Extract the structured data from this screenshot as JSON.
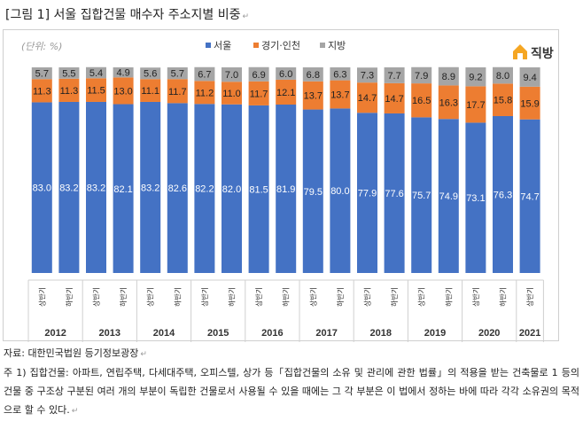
{
  "document": {
    "title": "[그림 1] 서울 집합건물 매수자 주소지별 비중",
    "source": "자료: 대한민국법원 등기정보광장",
    "footnote": "주 1) 집합건물: 아파트, 연립주택, 다세대주택, 오피스텔, 상가 등「집합건물의 소유 및 관리에 관한 법률」의 적용을 받는 건축물로 1 등의 건물 중 구조상 구분된 여러 개의 부분이 독립한 건물로서 사용될 수 있을 때에는 그 각 부분은 이 법에서 정하는 바에 따라 각각 소유권의 목적으로 할 수 있다.",
    "pilcrow": "↵"
  },
  "brand": {
    "name": "직방",
    "icon": "house-logo-icon",
    "color": "#f5a623"
  },
  "chart_data": {
    "type": "bar",
    "stacked": true,
    "unit_label": "(단위: %)",
    "ylim": [
      0,
      100
    ],
    "grid": false,
    "legend_position": "top-center",
    "categories": [
      {
        "year": "2012",
        "half": "상반기"
      },
      {
        "year": "2012",
        "half": "하반기"
      },
      {
        "year": "2013",
        "half": "상반기"
      },
      {
        "year": "2013",
        "half": "하반기"
      },
      {
        "year": "2014",
        "half": "상반기"
      },
      {
        "year": "2014",
        "half": "하반기"
      },
      {
        "year": "2015",
        "half": "상반기"
      },
      {
        "year": "2015",
        "half": "하반기"
      },
      {
        "year": "2016",
        "half": "상반기"
      },
      {
        "year": "2016",
        "half": "하반기"
      },
      {
        "year": "2017",
        "half": "상반기"
      },
      {
        "year": "2017",
        "half": "하반기"
      },
      {
        "year": "2018",
        "half": "상반기"
      },
      {
        "year": "2018",
        "half": "하반기"
      },
      {
        "year": "2019",
        "half": "상반기"
      },
      {
        "year": "2019",
        "half": "하반기"
      },
      {
        "year": "2020",
        "half": "상반기"
      },
      {
        "year": "2020",
        "half": "하반기"
      },
      {
        "year": "2021",
        "half": "상반기"
      }
    ],
    "years": [
      "2012",
      "2013",
      "2014",
      "2015",
      "2016",
      "2017",
      "2018",
      "2019",
      "2020",
      "2021"
    ],
    "series": [
      {
        "name": "서울",
        "color": "#4472c4",
        "values": [
          83.0,
          83.2,
          83.2,
          82.1,
          83.2,
          82.6,
          82.2,
          82.0,
          81.5,
          81.9,
          79.5,
          80.0,
          77.9,
          77.6,
          75.7,
          74.9,
          73.1,
          76.3,
          74.7
        ],
        "labels": [
          "83.0",
          "83.2",
          "83.2",
          "82.1",
          "83.2",
          "82.6",
          "82.2",
          "82.0",
          "81.5",
          "81.9",
          "79.5",
          "80.0",
          "77.9",
          "77.6",
          "75.7",
          "74.9",
          "73.1",
          "76.3",
          "74.7"
        ]
      },
      {
        "name": "경기·인천",
        "color": "#ed7d31",
        "values": [
          11.3,
          11.3,
          11.5,
          13.0,
          11.1,
          11.7,
          11.2,
          11.0,
          11.7,
          12.1,
          13.7,
          13.7,
          14.7,
          14.7,
          16.5,
          16.3,
          17.7,
          15.8,
          15.9
        ],
        "labels": [
          "11.3",
          "11.3",
          "11.5",
          "13.0",
          "11.1",
          "11.7",
          "11.2",
          "11.0",
          "11.7",
          "12.1",
          "13.7",
          "13.7",
          "14.7",
          "14.7",
          "16.5",
          "16.3",
          "17.7",
          "15.8",
          "15.9"
        ]
      },
      {
        "name": "지방",
        "color": "#a5a5a5",
        "values": [
          5.7,
          5.5,
          5.4,
          4.9,
          5.6,
          5.7,
          6.7,
          7.0,
          6.9,
          6.0,
          6.8,
          6.3,
          7.3,
          7.7,
          7.9,
          8.9,
          9.2,
          8.0,
          9.4
        ],
        "labels": [
          "5.7",
          "5.5",
          "5.4",
          "4.9",
          "5.6",
          "5.7",
          "6.7",
          "7.0",
          "6.9",
          "6.0",
          "6.8",
          "6.3",
          "7.3",
          "7.7",
          "7.9",
          "8.9",
          "9.2",
          "8.0",
          "9.4"
        ]
      }
    ]
  }
}
